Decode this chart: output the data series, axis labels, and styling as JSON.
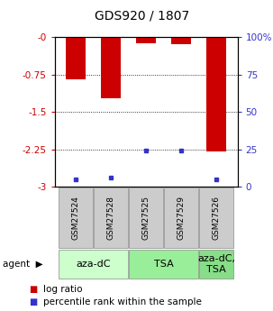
{
  "title": "GDS920 / 1807",
  "samples": [
    "GSM27524",
    "GSM27528",
    "GSM27525",
    "GSM27529",
    "GSM27526"
  ],
  "log_ratios": [
    -0.85,
    -1.22,
    -0.12,
    -0.13,
    -2.3
  ],
  "percentile_ranks": [
    5.0,
    6.0,
    24.0,
    24.0,
    5.0
  ],
  "ylim_left": [
    -3.0,
    0.0
  ],
  "ylim_right": [
    0,
    100
  ],
  "yticks_left": [
    0.0,
    -0.75,
    -1.5,
    -2.25,
    -3.0
  ],
  "ytick_labels_left": [
    "-0",
    "-0.75",
    "-1.5",
    "-2.25",
    "-3"
  ],
  "yticks_right": [
    0,
    25,
    50,
    75,
    100
  ],
  "ytick_labels_right": [
    "0",
    "25",
    "50",
    "75",
    "100%"
  ],
  "bar_color": "#cc0000",
  "percentile_color": "#3333cc",
  "bar_width": 0.55,
  "agent_groups": [
    {
      "label": "aza-dC",
      "samples": [
        "GSM27524",
        "GSM27528"
      ],
      "color": "#ccffcc"
    },
    {
      "label": "TSA",
      "samples": [
        "GSM27525",
        "GSM27529"
      ],
      "color": "#99ee99"
    },
    {
      "label": "aza-dC,\nTSA",
      "samples": [
        "GSM27526"
      ],
      "color": "#88dd88"
    }
  ],
  "plot_bg": "#ffffff",
  "grid_color": "#000000",
  "tick_color_left": "#cc0000",
  "tick_color_right": "#3333cc",
  "sample_box_color": "#cccccc",
  "title_fontsize": 10,
  "axis_fontsize": 7.5,
  "legend_fontsize": 7.5,
  "sample_fontsize": 6.5,
  "agent_fontsize": 8.0
}
